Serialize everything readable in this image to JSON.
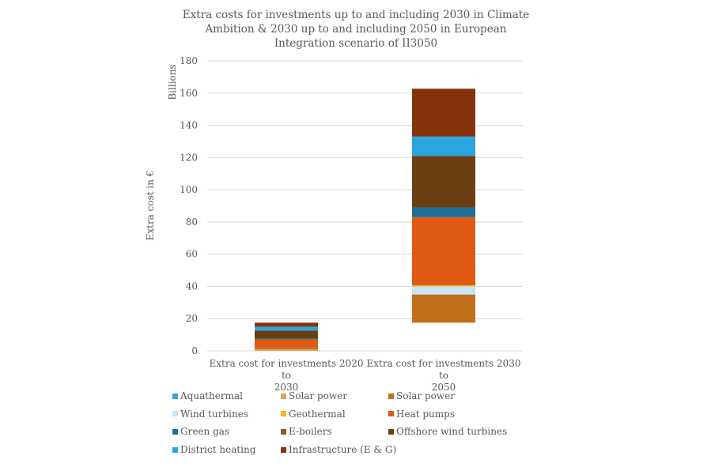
{
  "chart_data": {
    "type": "bar",
    "stacked": true,
    "title": "Extra costs for investments up to and including 2030 in Climate Ambition & 2030 up to and including 2050 in European Integration scenario of II3050",
    "title_lines": [
      "Extra costs for investments up to and including 2030 in Climate",
      "Ambition & 2030 up to and including 2050 in European",
      "Integration scenario of II3050"
    ],
    "xlabel": "",
    "ylabel": "Extra cost in €",
    "yunit_label": "Billions",
    "ylim": [
      0,
      180
    ],
    "yticks": [
      0,
      20,
      40,
      60,
      80,
      100,
      120,
      140,
      160,
      180
    ],
    "grid": true,
    "legend_position": "bottom",
    "categories": [
      "Extra cost for investments 2020 to 2030",
      "Extra cost for investments 2030 to 2050"
    ],
    "category_label_lines": [
      [
        "Extra cost for investments 2020 to",
        "2030"
      ],
      [
        "Extra cost for investments 2030 to",
        "2050"
      ]
    ],
    "bar_base": [
      0,
      17.5
    ],
    "series": [
      {
        "name": "Aquathermal",
        "color": "#3aa6d8",
        "values": [
          0,
          0
        ]
      },
      {
        "name": "Solar power",
        "color": "#e2a057",
        "values": [
          1.0,
          0
        ]
      },
      {
        "name": "Solar power",
        "color": "#c07018",
        "values": [
          1.0,
          17.5
        ]
      },
      {
        "name": "Wind turbines",
        "color": "#c6e5f5",
        "values": [
          0,
          5.0
        ]
      },
      {
        "name": "Geothermal",
        "color": "#f5b41e",
        "values": [
          0,
          0.7
        ]
      },
      {
        "name": "Heat pumps",
        "color": "#e05a13",
        "values": [
          5.0,
          42.3
        ]
      },
      {
        "name": "Green gas",
        "color": "#1f6f99",
        "values": [
          0.5,
          6.0
        ]
      },
      {
        "name": "E-boilers",
        "color": "#8a5a22",
        "values": [
          0,
          0
        ]
      },
      {
        "name": "Offshore wind turbines",
        "color": "#6b3f12",
        "values": [
          5.0,
          32.0
        ]
      },
      {
        "name": "District heating",
        "color": "#29a6e0",
        "values": [
          2.5,
          12.0
        ]
      },
      {
        "name": "Infrastructure (E & G)",
        "color": "#86330c",
        "values": [
          2.5,
          29.7
        ]
      }
    ]
  }
}
